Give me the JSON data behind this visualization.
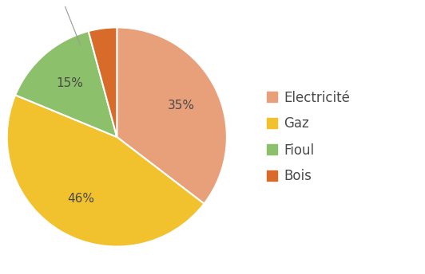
{
  "labels": [
    "Electricité",
    "Gaz",
    "Fioul",
    "Bois"
  ],
  "values": [
    34,
    44,
    14,
    4
  ],
  "colors": [
    "#E8A07A",
    "#F2C12E",
    "#8DC06A",
    "#D96B2A"
  ],
  "legend_labels": [
    "Electricité",
    "Gaz",
    "Fioul",
    "Bois"
  ],
  "startangle": 90,
  "background_color": "#ffffff",
  "text_color": "#4a4a4a",
  "pct_fontsize": 11,
  "legend_fontsize": 12
}
